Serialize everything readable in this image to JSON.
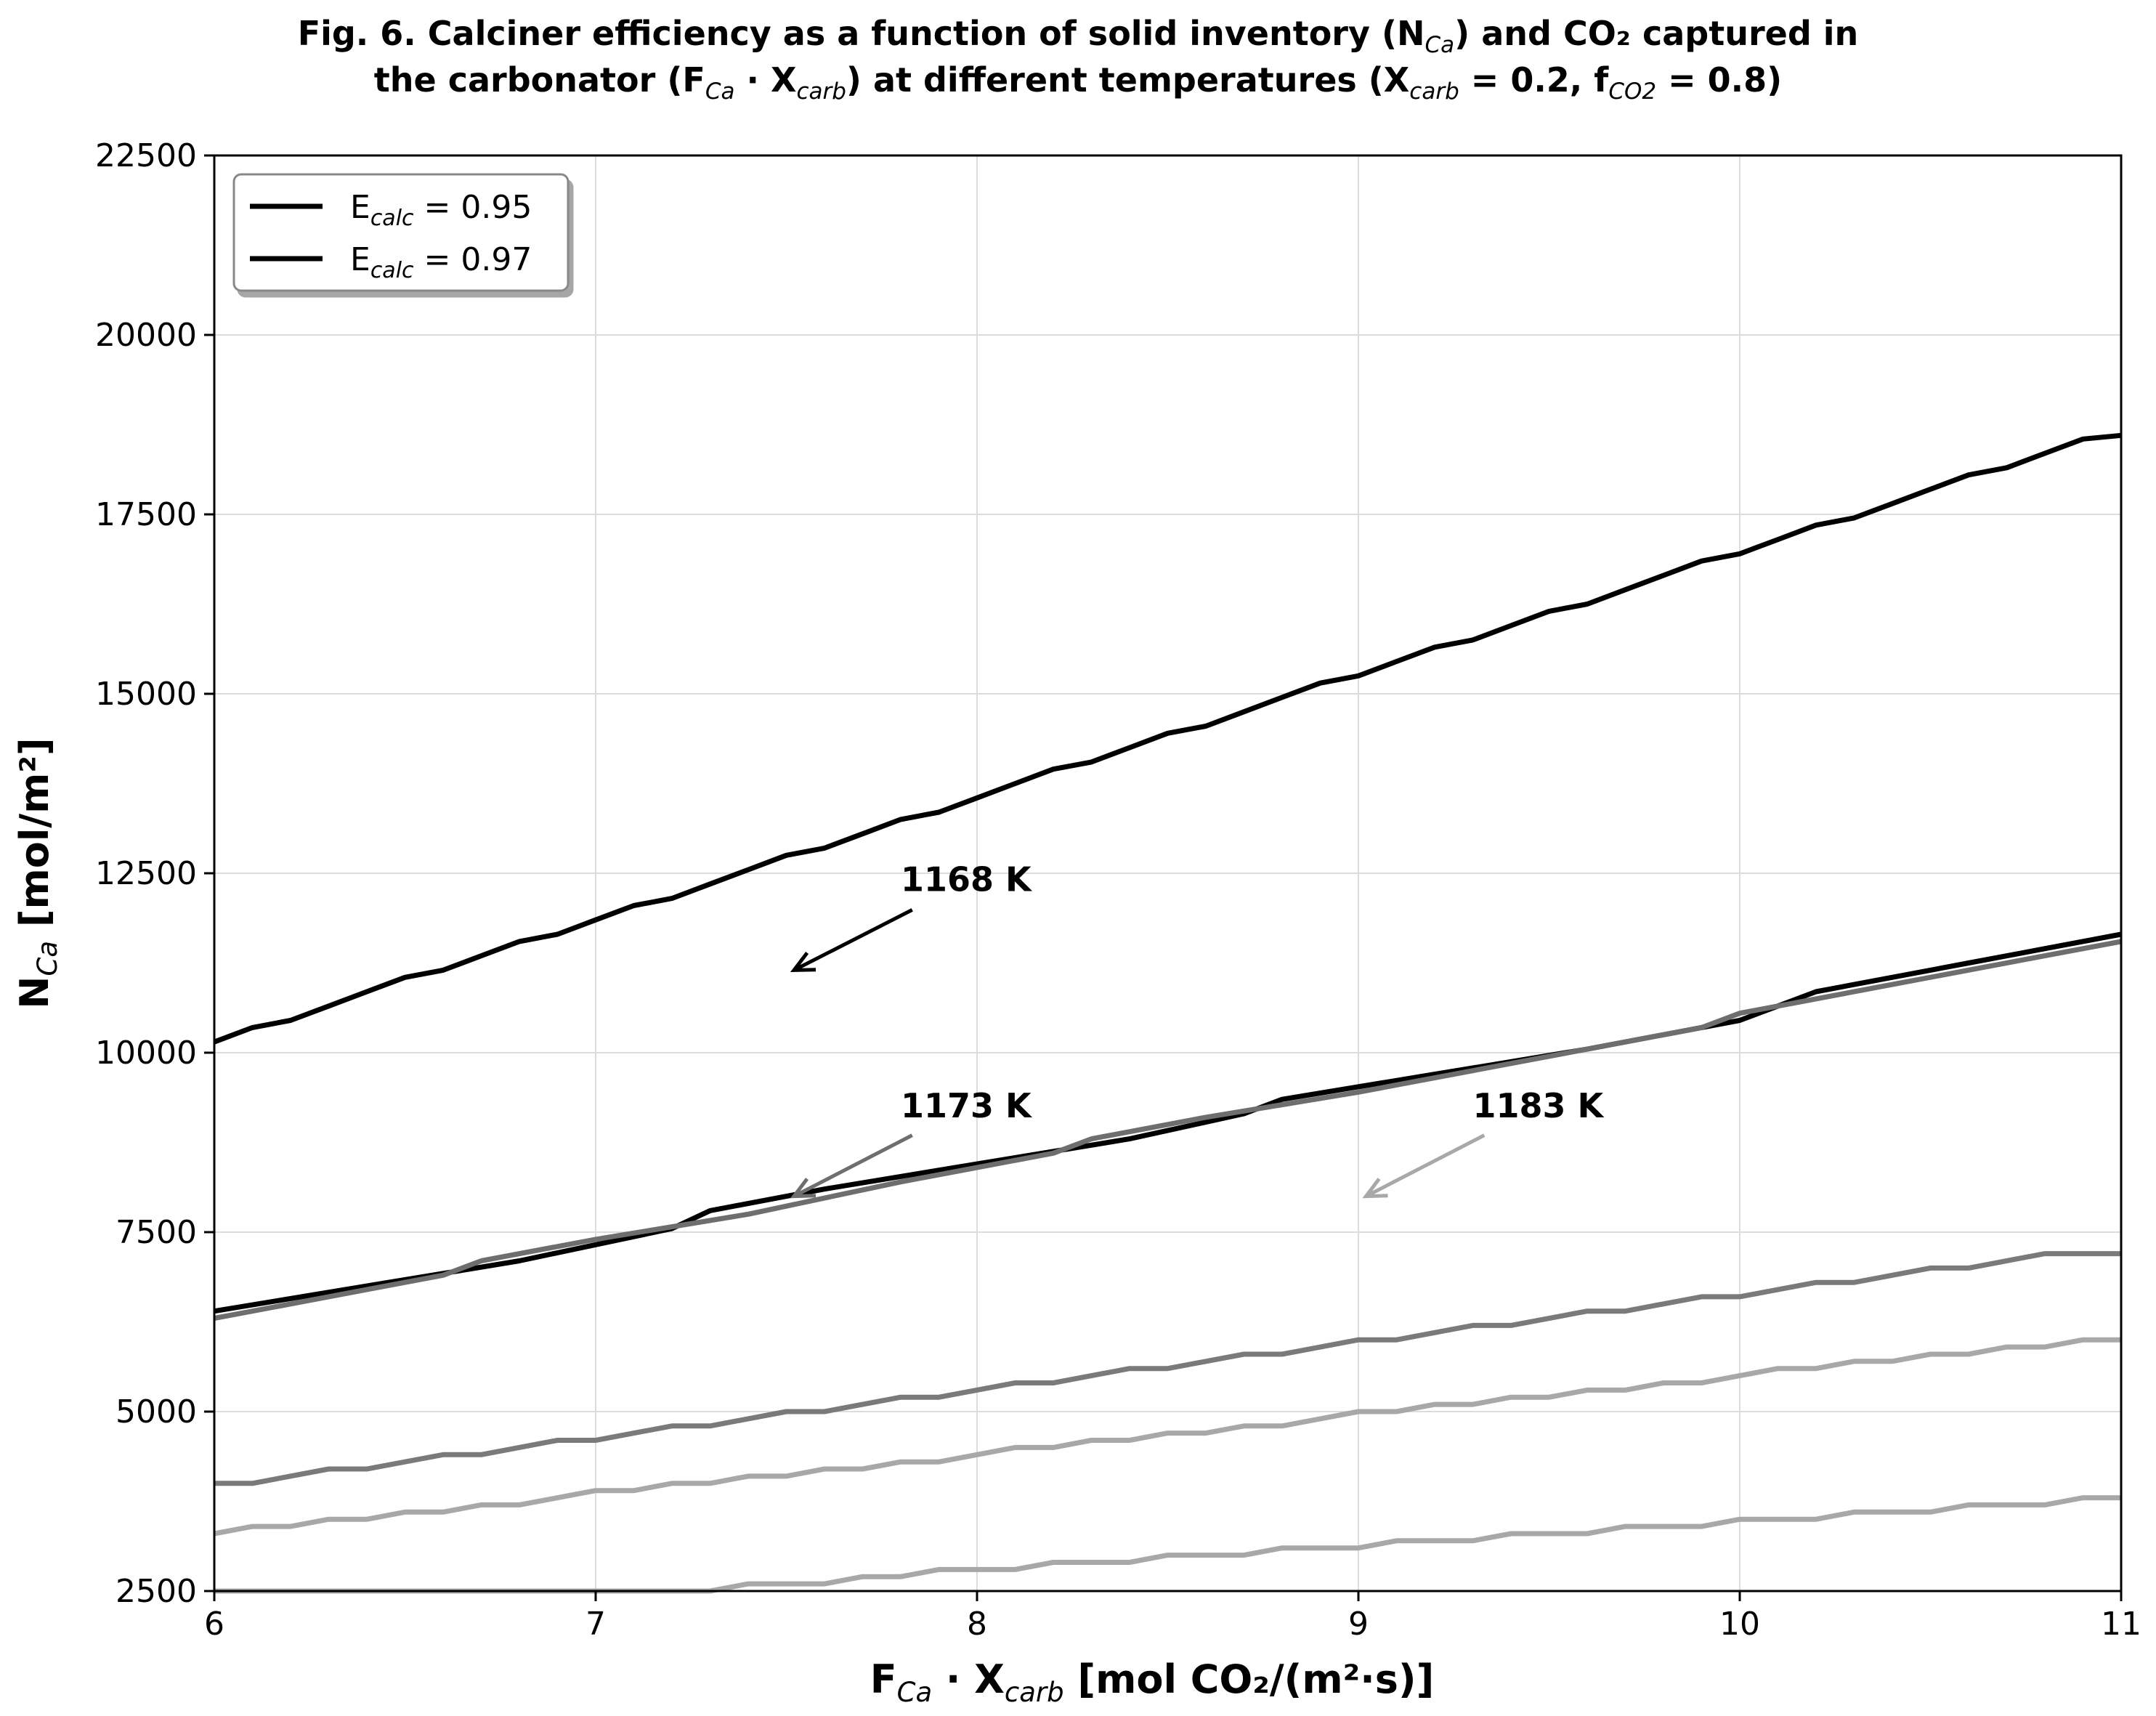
{
  "chart_data": {
    "type": "line",
    "title": {
      "line1": [
        {
          "t": "Fig. 6. Calciner efficiency as a function of solid inventory (N"
        },
        {
          "t": "Ca",
          "sub": true
        },
        {
          "t": ") and CO₂ captured in"
        }
      ],
      "line2": [
        {
          "t": "the carbonator (F"
        },
        {
          "t": "Ca",
          "sub": true
        },
        {
          "t": " · X"
        },
        {
          "t": "carb",
          "sub": true
        },
        {
          "t": ") at different temperatures (X"
        },
        {
          "t": "carb",
          "sub": true
        },
        {
          "t": " = 0.2, f"
        },
        {
          "t": "CO2",
          "sub": true
        },
        {
          "t": " = 0.8)"
        }
      ]
    },
    "xlabel": [
      {
        "t": "F"
      },
      {
        "t": "Ca",
        "sub": true
      },
      {
        "t": " · X"
      },
      {
        "t": "carb",
        "sub": true
      },
      {
        "t": " [mol CO₂/(m²·s)]"
      }
    ],
    "ylabel": [
      {
        "t": "N"
      },
      {
        "t": "Ca",
        "sub": true
      },
      {
        "t": " [mol/m²]"
      }
    ],
    "xlim": [
      6,
      11
    ],
    "ylim": [
      2500,
      22500
    ],
    "xticks": [
      6,
      7,
      8,
      9,
      10,
      11
    ],
    "yticks": [
      2500,
      5000,
      7500,
      10000,
      12500,
      15000,
      17500,
      20000,
      22500
    ],
    "grid": true,
    "legend": {
      "placement": "top-left",
      "entries": [
        {
          "label": [
            {
              "t": "E"
            },
            {
              "t": "calc",
              "sub": true
            },
            {
              "t": " = 0.95"
            }
          ],
          "color": "#000000"
        },
        {
          "label": [
            {
              "t": "E"
            },
            {
              "t": "calc",
              "sub": true
            },
            {
              "t": " = 0.97"
            }
          ],
          "color": "#000000"
        }
      ]
    },
    "series": [
      {
        "color": "#000000",
        "x": [
          6.0,
          6.1,
          6.2,
          6.3,
          6.4,
          6.5,
          6.6,
          6.7,
          6.8,
          6.9,
          7.0,
          7.1,
          7.2,
          7.3,
          7.4,
          7.5,
          7.6,
          7.7,
          7.8,
          7.9,
          8.0,
          8.1,
          8.2,
          8.3,
          8.4,
          8.5,
          8.6,
          8.7,
          8.8,
          8.9,
          9.0,
          9.1,
          9.2,
          9.3,
          9.4,
          9.5,
          9.6,
          9.7,
          9.8,
          9.9,
          10.0,
          10.1,
          10.2,
          10.3,
          10.4,
          10.5,
          10.6,
          10.7,
          10.8,
          10.9,
          11.0
        ],
        "y": [
          10150,
          10350,
          10450,
          10650,
          10850,
          11050,
          11150,
          11350,
          11550,
          11650,
          11850,
          12050,
          12150,
          12350,
          12550,
          12750,
          12850,
          13050,
          13250,
          13350,
          13550,
          13750,
          13950,
          14050,
          14250,
          14450,
          14550,
          14750,
          14950,
          15150,
          15250,
          15450,
          15650,
          15750,
          15950,
          16150,
          16250,
          16450,
          16650,
          16850,
          16950,
          17150,
          17350,
          17450,
          17650,
          17850,
          18050,
          18150,
          18350,
          18550,
          18600
        ]
      },
      {
        "color": "#000000",
        "x": [
          6.0,
          6.4,
          6.8,
          7.2,
          7.3,
          7.6,
          8.0,
          8.4,
          8.7,
          8.8,
          9.2,
          9.6,
          10.0,
          10.1,
          10.2,
          10.6,
          11.0
        ],
        "y": [
          6400,
          6750,
          7100,
          7550,
          7800,
          8100,
          8450,
          8800,
          9150,
          9350,
          9700,
          10050,
          10450,
          10650,
          10850,
          11250,
          11650
        ]
      },
      {
        "color": "#6e6e6e",
        "x": [
          6.0,
          6.3,
          6.6,
          6.7,
          7.0,
          7.4,
          7.8,
          8.2,
          8.3,
          8.6,
          9.0,
          9.4,
          9.8,
          9.9,
          10.0,
          10.4,
          10.8,
          11.0
        ],
        "y": [
          6300,
          6600,
          6900,
          7100,
          7400,
          7750,
          8200,
          8600,
          8800,
          9100,
          9450,
          9850,
          10250,
          10350,
          10550,
          10950,
          11350,
          11550
        ]
      },
      {
        "color": "#7a7a7a",
        "x": [
          6.0,
          6.1,
          6.3,
          6.4,
          6.6,
          6.7,
          6.9,
          7.0,
          7.2,
          7.3,
          7.5,
          7.6,
          7.8,
          7.9,
          8.1,
          8.2,
          8.4,
          8.5,
          8.7,
          8.8,
          9.0,
          9.1,
          9.3,
          9.4,
          9.6,
          9.7,
          9.9,
          10.0,
          10.2,
          10.3,
          10.5,
          10.6,
          10.8,
          10.9,
          11.0
        ],
        "y": [
          4000,
          4000,
          4200,
          4200,
          4400,
          4400,
          4600,
          4600,
          4800,
          4800,
          5000,
          5000,
          5200,
          5200,
          5400,
          5400,
          5600,
          5600,
          5800,
          5800,
          6000,
          6000,
          6200,
          6200,
          6400,
          6400,
          6600,
          6600,
          6800,
          6800,
          7000,
          7000,
          7200,
          7200,
          7200
        ]
      },
      {
        "color": "#a8a8a8",
        "x": [
          6.0,
          6.1,
          6.2,
          6.3,
          6.4,
          6.5,
          6.6,
          6.7,
          6.8,
          6.9,
          7.0,
          7.1,
          7.2,
          7.3,
          7.4,
          7.5,
          7.6,
          7.7,
          7.8,
          7.9,
          8.0,
          8.1,
          8.2,
          8.3,
          8.4,
          8.5,
          8.6,
          8.7,
          8.8,
          8.9,
          9.0,
          9.1,
          9.2,
          9.3,
          9.4,
          9.5,
          9.6,
          9.7,
          9.8,
          9.9,
          10.0,
          10.1,
          10.2,
          10.3,
          10.4,
          10.5,
          10.6,
          10.7,
          10.8,
          10.9,
          11.0
        ],
        "y": [
          3300,
          3400,
          3400,
          3500,
          3500,
          3600,
          3600,
          3700,
          3700,
          3800,
          3900,
          3900,
          4000,
          4000,
          4100,
          4100,
          4200,
          4200,
          4300,
          4300,
          4400,
          4500,
          4500,
          4600,
          4600,
          4700,
          4700,
          4800,
          4800,
          4900,
          5000,
          5000,
          5100,
          5100,
          5200,
          5200,
          5300,
          5300,
          5400,
          5400,
          5500,
          5600,
          5600,
          5700,
          5700,
          5800,
          5800,
          5900,
          5900,
          6000,
          6000
        ]
      },
      {
        "color": "#a8a8a8",
        "x": [
          6.0,
          7.3,
          7.4,
          7.6,
          7.7,
          7.8,
          7.9,
          8.1,
          8.2,
          8.4,
          8.5,
          8.7,
          8.8,
          9.0,
          9.1,
          9.3,
          9.4,
          9.6,
          9.7,
          9.9,
          10.0,
          10.2,
          10.3,
          10.5,
          10.6,
          10.8,
          10.9,
          11.0
        ],
        "y": [
          2500,
          2500,
          2600,
          2600,
          2700,
          2700,
          2800,
          2800,
          2900,
          2900,
          3000,
          3000,
          3100,
          3100,
          3200,
          3200,
          3300,
          3300,
          3400,
          3400,
          3500,
          3500,
          3600,
          3600,
          3700,
          3700,
          3800,
          3800
        ]
      }
    ],
    "annotations": [
      {
        "text": "1168 K",
        "text_x": 7.8,
        "text_y": 12250,
        "arrow_from": [
          7.83,
          11990
        ],
        "arrow_to": [
          7.52,
          11150
        ],
        "color": "#000000"
      },
      {
        "text": "1173 K",
        "text_x": 7.8,
        "text_y": 9100,
        "arrow_from": [
          7.83,
          8850
        ],
        "arrow_to": [
          7.52,
          8000
        ],
        "color": "#6e6e6e"
      },
      {
        "text": "1183 K",
        "text_x": 9.3,
        "text_y": 9100,
        "arrow_from": [
          9.33,
          8850
        ],
        "arrow_to": [
          9.02,
          8000
        ],
        "color": "#a8a8a8"
      }
    ]
  }
}
